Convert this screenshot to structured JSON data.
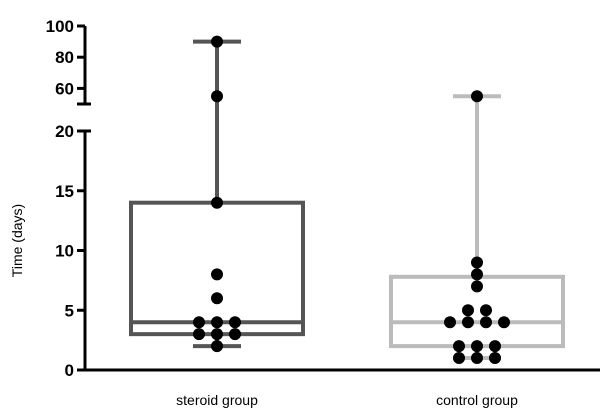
{
  "chart_data": {
    "type": "box",
    "ylabel": "Time (days)",
    "y_axis": {
      "broken": true,
      "lower_segment": {
        "range": [
          0,
          20
        ],
        "ticks": [
          0,
          5,
          10,
          15,
          20
        ]
      },
      "upper_segment": {
        "range": [
          50,
          100
        ],
        "ticks": [
          60,
          80,
          100
        ]
      }
    },
    "categories": [
      "steroid group",
      "control group"
    ],
    "series": [
      {
        "category": "steroid group",
        "color": "#555555",
        "box": {
          "min": 2,
          "q1": 3,
          "median": 4,
          "q3": 14,
          "max": 90
        },
        "points": [
          2,
          3,
          3,
          3,
          4,
          4,
          4,
          6,
          8,
          14,
          55,
          90
        ]
      },
      {
        "category": "control group",
        "color": "#bbbbbb",
        "box": {
          "min": 1,
          "q1": 2,
          "median": 4,
          "q3": 7.8,
          "max": 55
        },
        "points": [
          1,
          1,
          1,
          2,
          2,
          2,
          4,
          4,
          4,
          4,
          5,
          5,
          7,
          8,
          9,
          55
        ]
      }
    ]
  }
}
